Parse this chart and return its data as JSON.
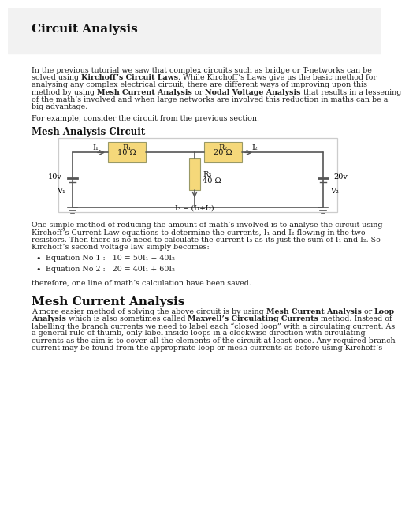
{
  "title": "Circuit Analysis",
  "page_bg": "#ffffff",
  "header_bg": "#f2f2f2",
  "intro_lines": [
    "In the previous tutorial we saw that complex circuits such as bridge or T-networks can be",
    "solved using ",
    "Kirchoff’s Circuit Laws",
    ". While Kirchoff’s Laws give us the basic method for",
    "analysing any complex electrical circuit, there are different ways of improving upon this",
    "method by using ",
    "Mesh Current Analysis",
    " or ",
    "Nodal Voltage Analysis",
    " that results in a lessening",
    "of the math’s involved and when large networks are involved this reduction in maths can be a",
    "big advantage."
  ],
  "example_text": "For example, consider the circuit from the previous section.",
  "circuit_title": "Mesh Analysis Circuit",
  "para2_lines": [
    "One simple method of reducing the amount of math’s involved is to analyse the circuit using",
    "Kirchoff’s Current Law equations to determine the currents, I₁ and I₂ flowing in the two",
    "resistors. Then there is no need to calculate the current I₃ as its just the sum of I₁ and I₂. So",
    "Kirchoff’s second voltage law simply becomes:"
  ],
  "bullet1_label": "Equation No 1 :",
  "bullet1_eq": "  10 = 50I₁ + 40I₂",
  "bullet2_label": "Equation No 2 :",
  "bullet2_eq": "  20 = 40I₁ + 60I₂",
  "footer_text": "therefore, one line of math’s calculation have been saved.",
  "section2_title": "Mesh Current Analysis",
  "section2_lines": [
    "A more easier method of solving the above circuit is by using ",
    "Mesh Current",
    " Analysis or ",
    "Loop",
    "",
    "Analysis",
    " which is also sometimes called ",
    "Maxwell’s Circulating Currents",
    " method. Instead of",
    "labelling the branch currents we need to label each “closed loop” with a circulating current. As",
    "a general rule of thumb, only label inside loops in a clockwise direction with circulating",
    "currents as the aim is to cover all the elements of the circuit at least once. Any required branch",
    "current may be found from the appropriate loop or mesh currents as before using Kirchoff’s"
  ],
  "wire_color": "#555555",
  "box_color": "#f5d87a",
  "box_edge": "#999966",
  "circuit_border": "#cccccc",
  "text_color": "#222222",
  "bold_color": "#111111"
}
